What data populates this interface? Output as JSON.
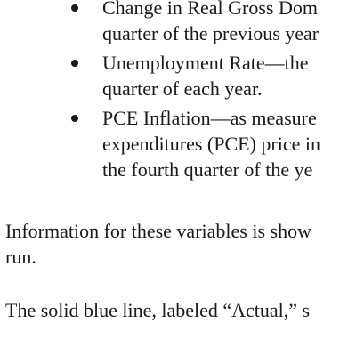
{
  "bullets": [
    {
      "lines": [
        "Change in Real Gross Dom",
        "quarter of the previous year"
      ]
    },
    {
      "lines": [
        "Unemployment Rate—the",
        "quarter of each year."
      ]
    },
    {
      "lines": [
        "PCE Inflation—as measure",
        "expenditures (PCE) price in",
        "the fourth quarter of the ye"
      ]
    }
  ],
  "paragraphs": [
    {
      "lines": [
        "Information for these variables is show",
        "run."
      ]
    },
    {
      "lines": [
        "The solid blue line, labeled “Actual,” s"
      ]
    }
  ]
}
